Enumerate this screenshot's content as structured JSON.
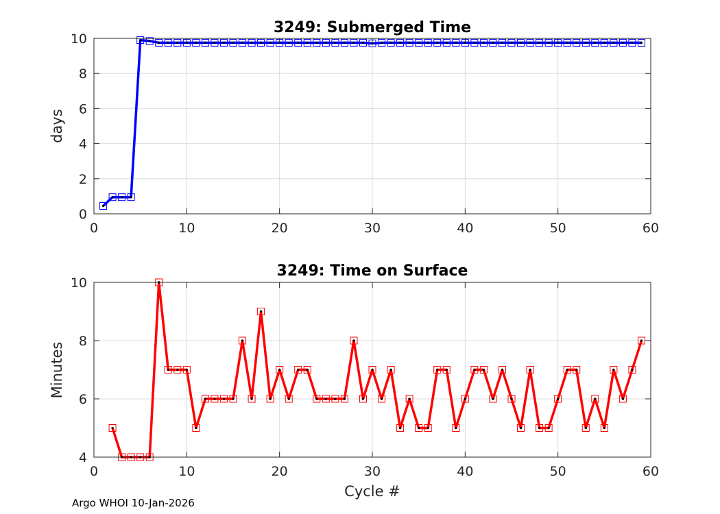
{
  "footer": {
    "credit": "Argo WHOI 10-Jan-2026"
  },
  "chart_data": [
    {
      "type": "line",
      "title": "3249: Submerged Time",
      "xlabel": "",
      "ylabel": "days",
      "xlim": [
        0,
        60
      ],
      "ylim": [
        0,
        10
      ],
      "xticks": [
        0,
        10,
        20,
        30,
        40,
        50,
        60
      ],
      "yticks": [
        0,
        2,
        4,
        6,
        8,
        10
      ],
      "grid": true,
      "color": "#0000ff",
      "marker": "square",
      "series": [
        {
          "x": [
            1,
            2,
            3,
            4,
            5,
            6,
            7,
            8,
            9,
            10,
            11,
            12,
            13,
            14,
            15,
            16,
            17,
            18,
            19,
            20,
            21,
            22,
            23,
            24,
            25,
            26,
            27,
            28,
            29,
            30,
            31,
            32,
            33,
            34,
            35,
            36,
            37,
            38,
            39,
            40,
            41,
            42,
            43,
            44,
            45,
            46,
            47,
            48,
            49,
            50,
            51,
            52,
            53,
            54,
            55,
            56,
            57,
            58,
            59
          ],
          "values": [
            0.45,
            0.95,
            0.95,
            0.95,
            9.9,
            9.85,
            9.75,
            9.75,
            9.75,
            9.75,
            9.75,
            9.75,
            9.75,
            9.75,
            9.75,
            9.75,
            9.75,
            9.75,
            9.75,
            9.75,
            9.75,
            9.75,
            9.75,
            9.75,
            9.75,
            9.75,
            9.75,
            9.75,
            9.75,
            9.72,
            9.75,
            9.75,
            9.75,
            9.75,
            9.75,
            9.75,
            9.75,
            9.75,
            9.75,
            9.75,
            9.75,
            9.75,
            9.75,
            9.75,
            9.75,
            9.75,
            9.75,
            9.75,
            9.75,
            9.75,
            9.75,
            9.75,
            9.75,
            9.75,
            9.75,
            9.75,
            9.75,
            9.75,
            9.75
          ]
        }
      ]
    },
    {
      "type": "line",
      "title": "3249: Time on Surface",
      "xlabel": "Cycle #",
      "ylabel": "Minutes",
      "xlim": [
        0,
        60
      ],
      "ylim": [
        4,
        10
      ],
      "xticks": [
        0,
        10,
        20,
        30,
        40,
        50,
        60
      ],
      "yticks": [
        4,
        6,
        8,
        10
      ],
      "grid": true,
      "color": "#ff0000",
      "marker": "square",
      "series": [
        {
          "x": [
            2,
            3,
            4,
            5,
            6,
            7,
            8,
            9,
            10,
            11,
            12,
            13,
            14,
            15,
            16,
            17,
            18,
            19,
            20,
            21,
            22,
            23,
            24,
            25,
            26,
            27,
            28,
            29,
            30,
            31,
            32,
            33,
            34,
            35,
            36,
            37,
            38,
            39,
            40,
            41,
            42,
            43,
            44,
            45,
            46,
            47,
            48,
            49,
            50,
            51,
            52,
            53,
            54,
            55,
            56,
            57,
            58,
            59
          ],
          "values": [
            5,
            4,
            4,
            4,
            4,
            10,
            7,
            7,
            7,
            5,
            6,
            6,
            6,
            6,
            8,
            6,
            9,
            6,
            7,
            6,
            7,
            7,
            6,
            6,
            6,
            6,
            8,
            6,
            7,
            6,
            7,
            5,
            6,
            5,
            5,
            7,
            7,
            5,
            6,
            7,
            7,
            6,
            7,
            6,
            5,
            7,
            5,
            5,
            6,
            7,
            7,
            5,
            6,
            5,
            7,
            6,
            7,
            8
          ]
        }
      ]
    }
  ]
}
